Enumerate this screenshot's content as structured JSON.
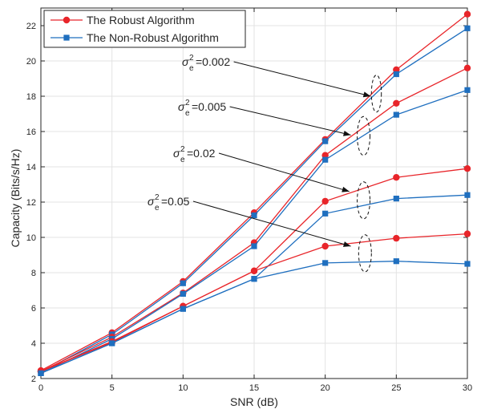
{
  "chart_data": {
    "type": "line",
    "xlabel": "SNR (dB)",
    "ylabel": "Capacity (Bits/s/Hz)",
    "xlim": [
      0,
      30
    ],
    "ylim": [
      2,
      23
    ],
    "xticks": [
      0,
      5,
      10,
      15,
      20,
      25,
      30
    ],
    "yticks": [
      2,
      4,
      6,
      8,
      10,
      12,
      14,
      16,
      18,
      20,
      22
    ],
    "x": [
      0,
      5,
      10,
      15,
      20,
      25,
      30
    ],
    "grid": true,
    "legend_position": "top-left",
    "legend": [
      {
        "label": "The Robust Algorithm",
        "color": "#e8252a",
        "marker": "circle"
      },
      {
        "label": "The Non-Robust Algorithm",
        "color": "#1f6fbf",
        "marker": "square"
      }
    ],
    "series": [
      {
        "group": "robust",
        "values": [
          2.45,
          4.6,
          7.5,
          11.4,
          15.55,
          19.5,
          22.65
        ]
      },
      {
        "group": "nonrobust",
        "values": [
          2.35,
          4.5,
          7.4,
          11.25,
          15.45,
          19.25,
          21.85
        ]
      },
      {
        "group": "robust",
        "values": [
          2.4,
          4.35,
          6.85,
          9.7,
          14.65,
          17.6,
          19.6
        ]
      },
      {
        "group": "nonrobust",
        "values": [
          2.3,
          4.25,
          6.8,
          9.5,
          14.4,
          16.95,
          18.35
        ]
      },
      {
        "group": "robust",
        "values": [
          2.4,
          4.1,
          6.1,
          8.1,
          12.05,
          13.4,
          13.9
        ]
      },
      {
        "group": "nonrobust",
        "values": [
          2.3,
          4.0,
          5.95,
          7.65,
          11.35,
          12.2,
          12.4
        ]
      },
      {
        "group": "robust",
        "values": [
          2.4,
          4.05,
          6.1,
          8.1,
          9.5,
          9.95,
          10.2
        ]
      },
      {
        "group": "nonrobust",
        "values": [
          2.3,
          4.0,
          5.95,
          7.65,
          8.55,
          8.65,
          8.5
        ]
      }
    ],
    "annotations": [
      {
        "sigma": "σ",
        "exp": "2",
        "sub": "e",
        "value": "=0.002",
        "arrow_to": [
          23.2,
          18.0
        ],
        "ellipse": {
          "x": 23.6,
          "y": 18.15,
          "rx": 0.35,
          "ry": 1.05
        }
      },
      {
        "sigma": "σ",
        "exp": "2",
        "sub": "e",
        "value": "=0.005",
        "arrow_to": [
          21.8,
          15.8
        ],
        "ellipse": {
          "x": 22.7,
          "y": 15.75,
          "rx": 0.45,
          "ry": 1.1
        }
      },
      {
        "sigma": "σ",
        "exp": "2",
        "sub": "e",
        "value": "=0.02",
        "arrow_to": [
          21.7,
          12.6
        ],
        "ellipse": {
          "x": 22.7,
          "y": 12.1,
          "rx": 0.45,
          "ry": 1.05
        }
      },
      {
        "sigma": "σ",
        "exp": "2",
        "sub": "e",
        "value": "=0.05",
        "arrow_to": [
          21.8,
          9.5
        ],
        "ellipse": {
          "x": 22.8,
          "y": 9.1,
          "rx": 0.45,
          "ry": 1.05
        }
      }
    ]
  }
}
